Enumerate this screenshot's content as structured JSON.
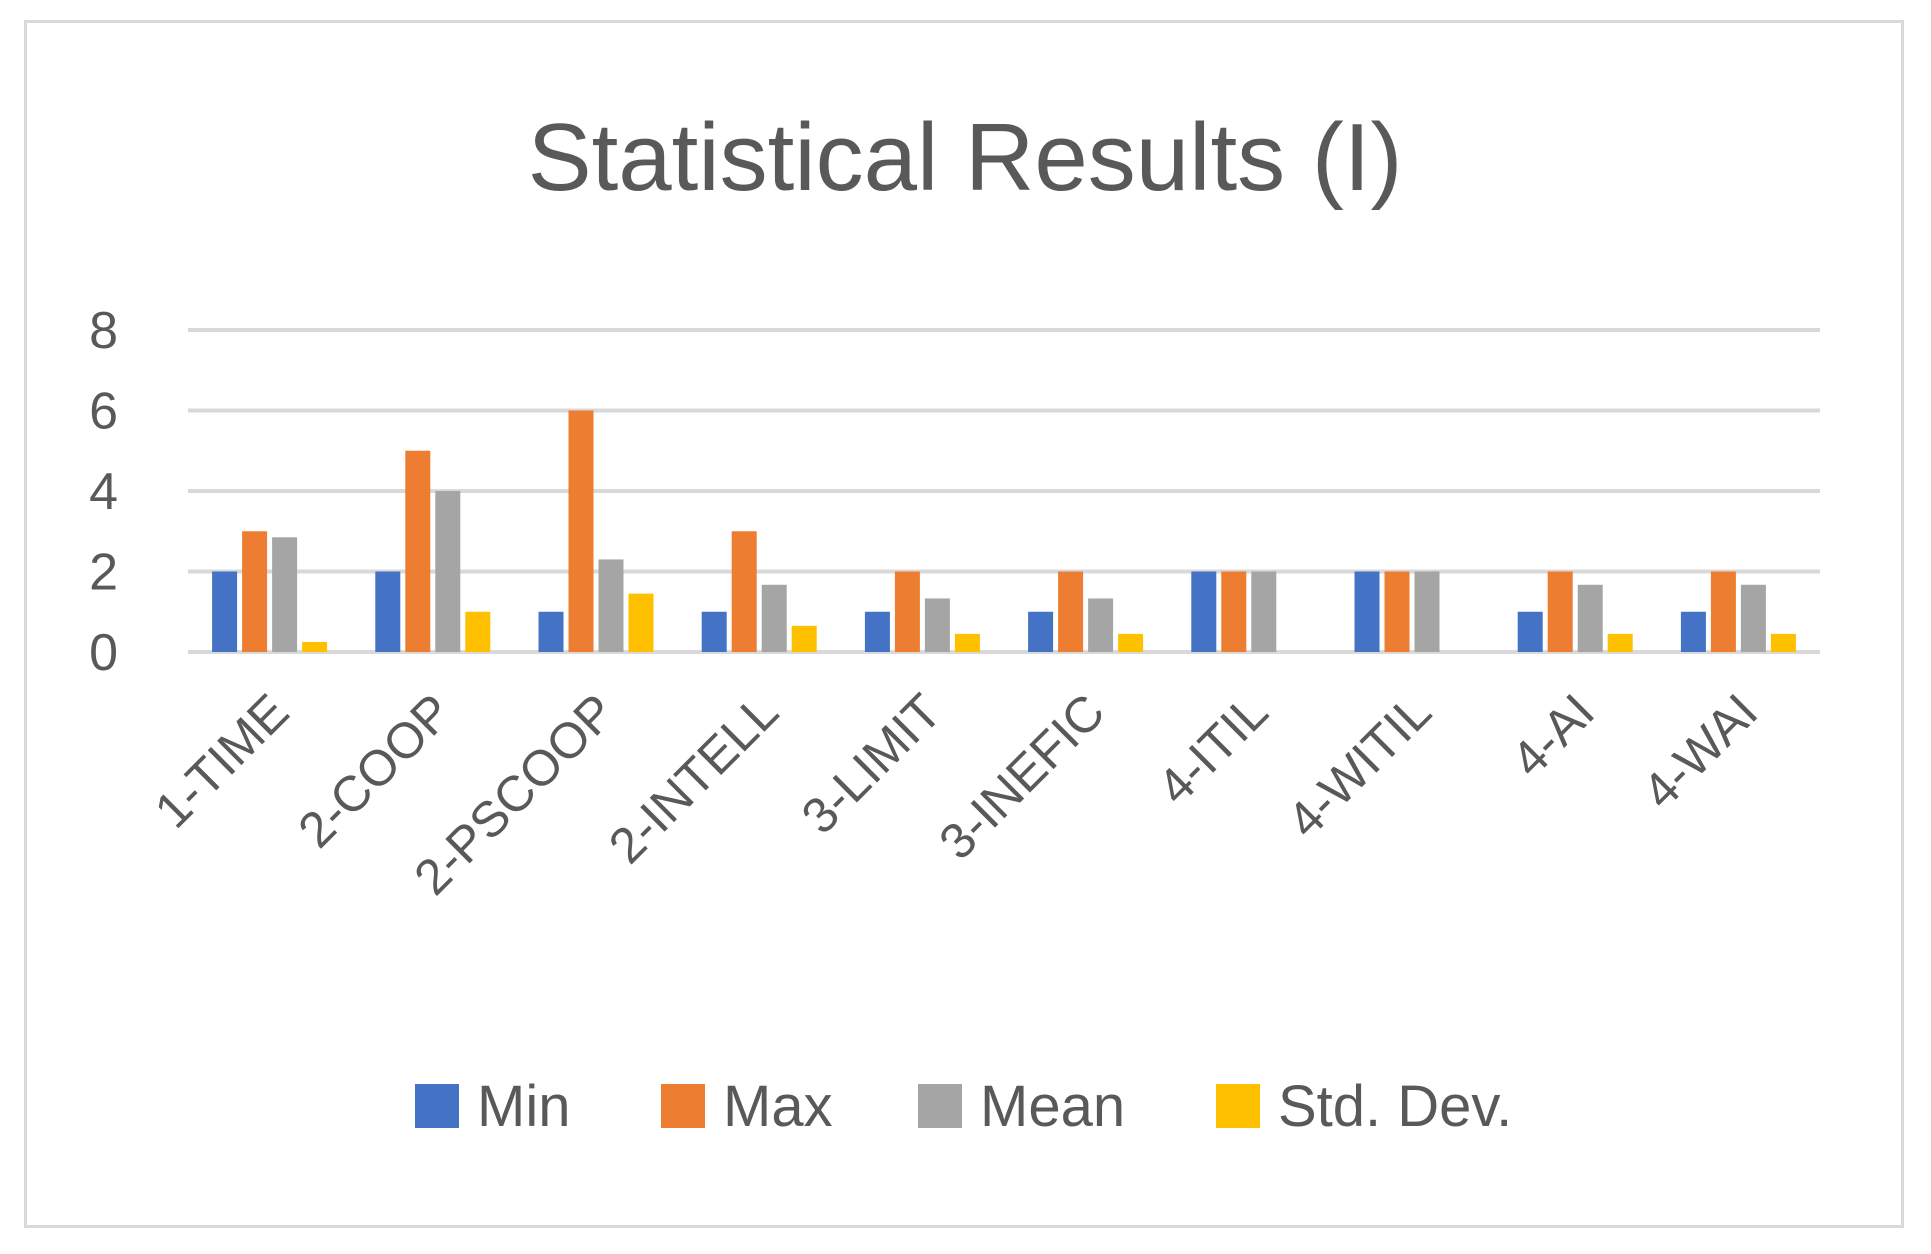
{
  "chart_data": {
    "type": "bar",
    "title": "Statistical Results (I)",
    "xlabel": "",
    "ylabel": "",
    "ylim": [
      0,
      8
    ],
    "yticks": [
      "0",
      "2",
      "4",
      "6",
      "8"
    ],
    "grid": true,
    "legend_position": "bottom",
    "categories": [
      "1-TIME",
      "2-COOP",
      "2-PSCOOP",
      "2-INTELL",
      "3-LIMIT",
      "3-INEFIC",
      "4-ITIL",
      "4-WITIL",
      "4-AI",
      "4-WAI"
    ],
    "series": [
      {
        "name": "Min",
        "color": "#4472c4",
        "values": [
          2,
          2,
          1,
          1,
          1,
          1,
          2,
          2,
          1,
          1
        ]
      },
      {
        "name": "Max",
        "color": "#ed7d31",
        "values": [
          3,
          5,
          6,
          3,
          2,
          2,
          2,
          2,
          2,
          2
        ]
      },
      {
        "name": "Mean",
        "color": "#a5a5a5",
        "values": [
          2.85,
          4,
          2.3,
          1.67,
          1.33,
          1.33,
          2,
          2,
          1.67,
          1.67
        ]
      },
      {
        "name": "Std. Dev.",
        "color": "#ffc000",
        "values": [
          0.25,
          1,
          1.45,
          0.65,
          0.45,
          0.45,
          0,
          0,
          0.45,
          0.45
        ]
      }
    ]
  }
}
